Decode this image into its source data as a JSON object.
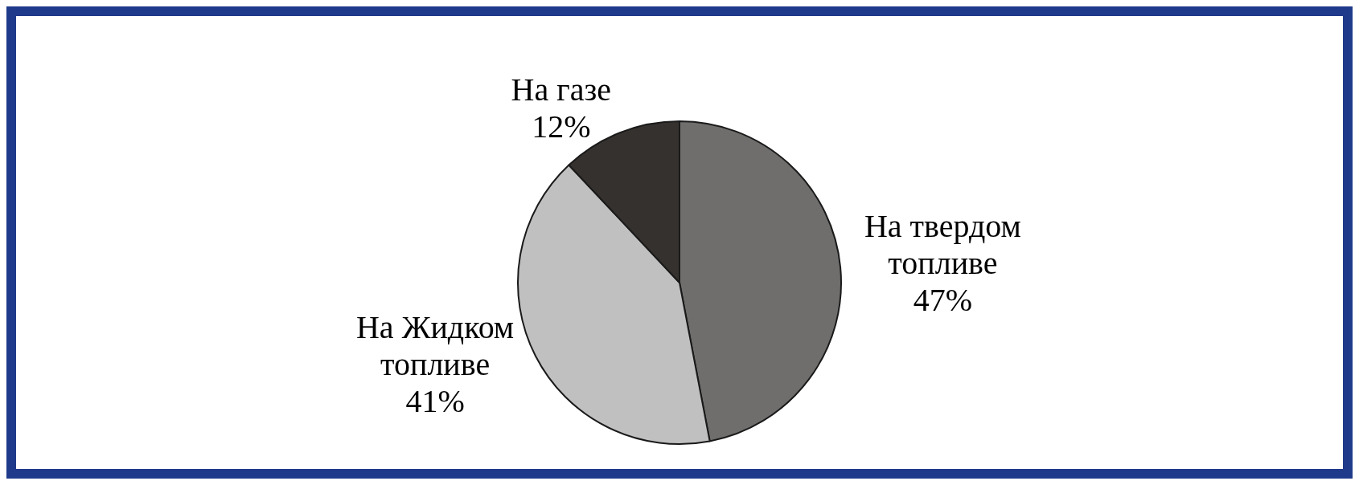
{
  "chart_data": {
    "type": "pie",
    "categories": [
      "На твердом топливе",
      "На Жидком топливе",
      "На газе"
    ],
    "values": [
      47,
      41,
      12
    ],
    "colors": [
      "#6f6e6c",
      "#c0c0c0",
      "#35312e"
    ],
    "value_labels": [
      "47%",
      "41%",
      "12%"
    ],
    "legend": false
  }
}
